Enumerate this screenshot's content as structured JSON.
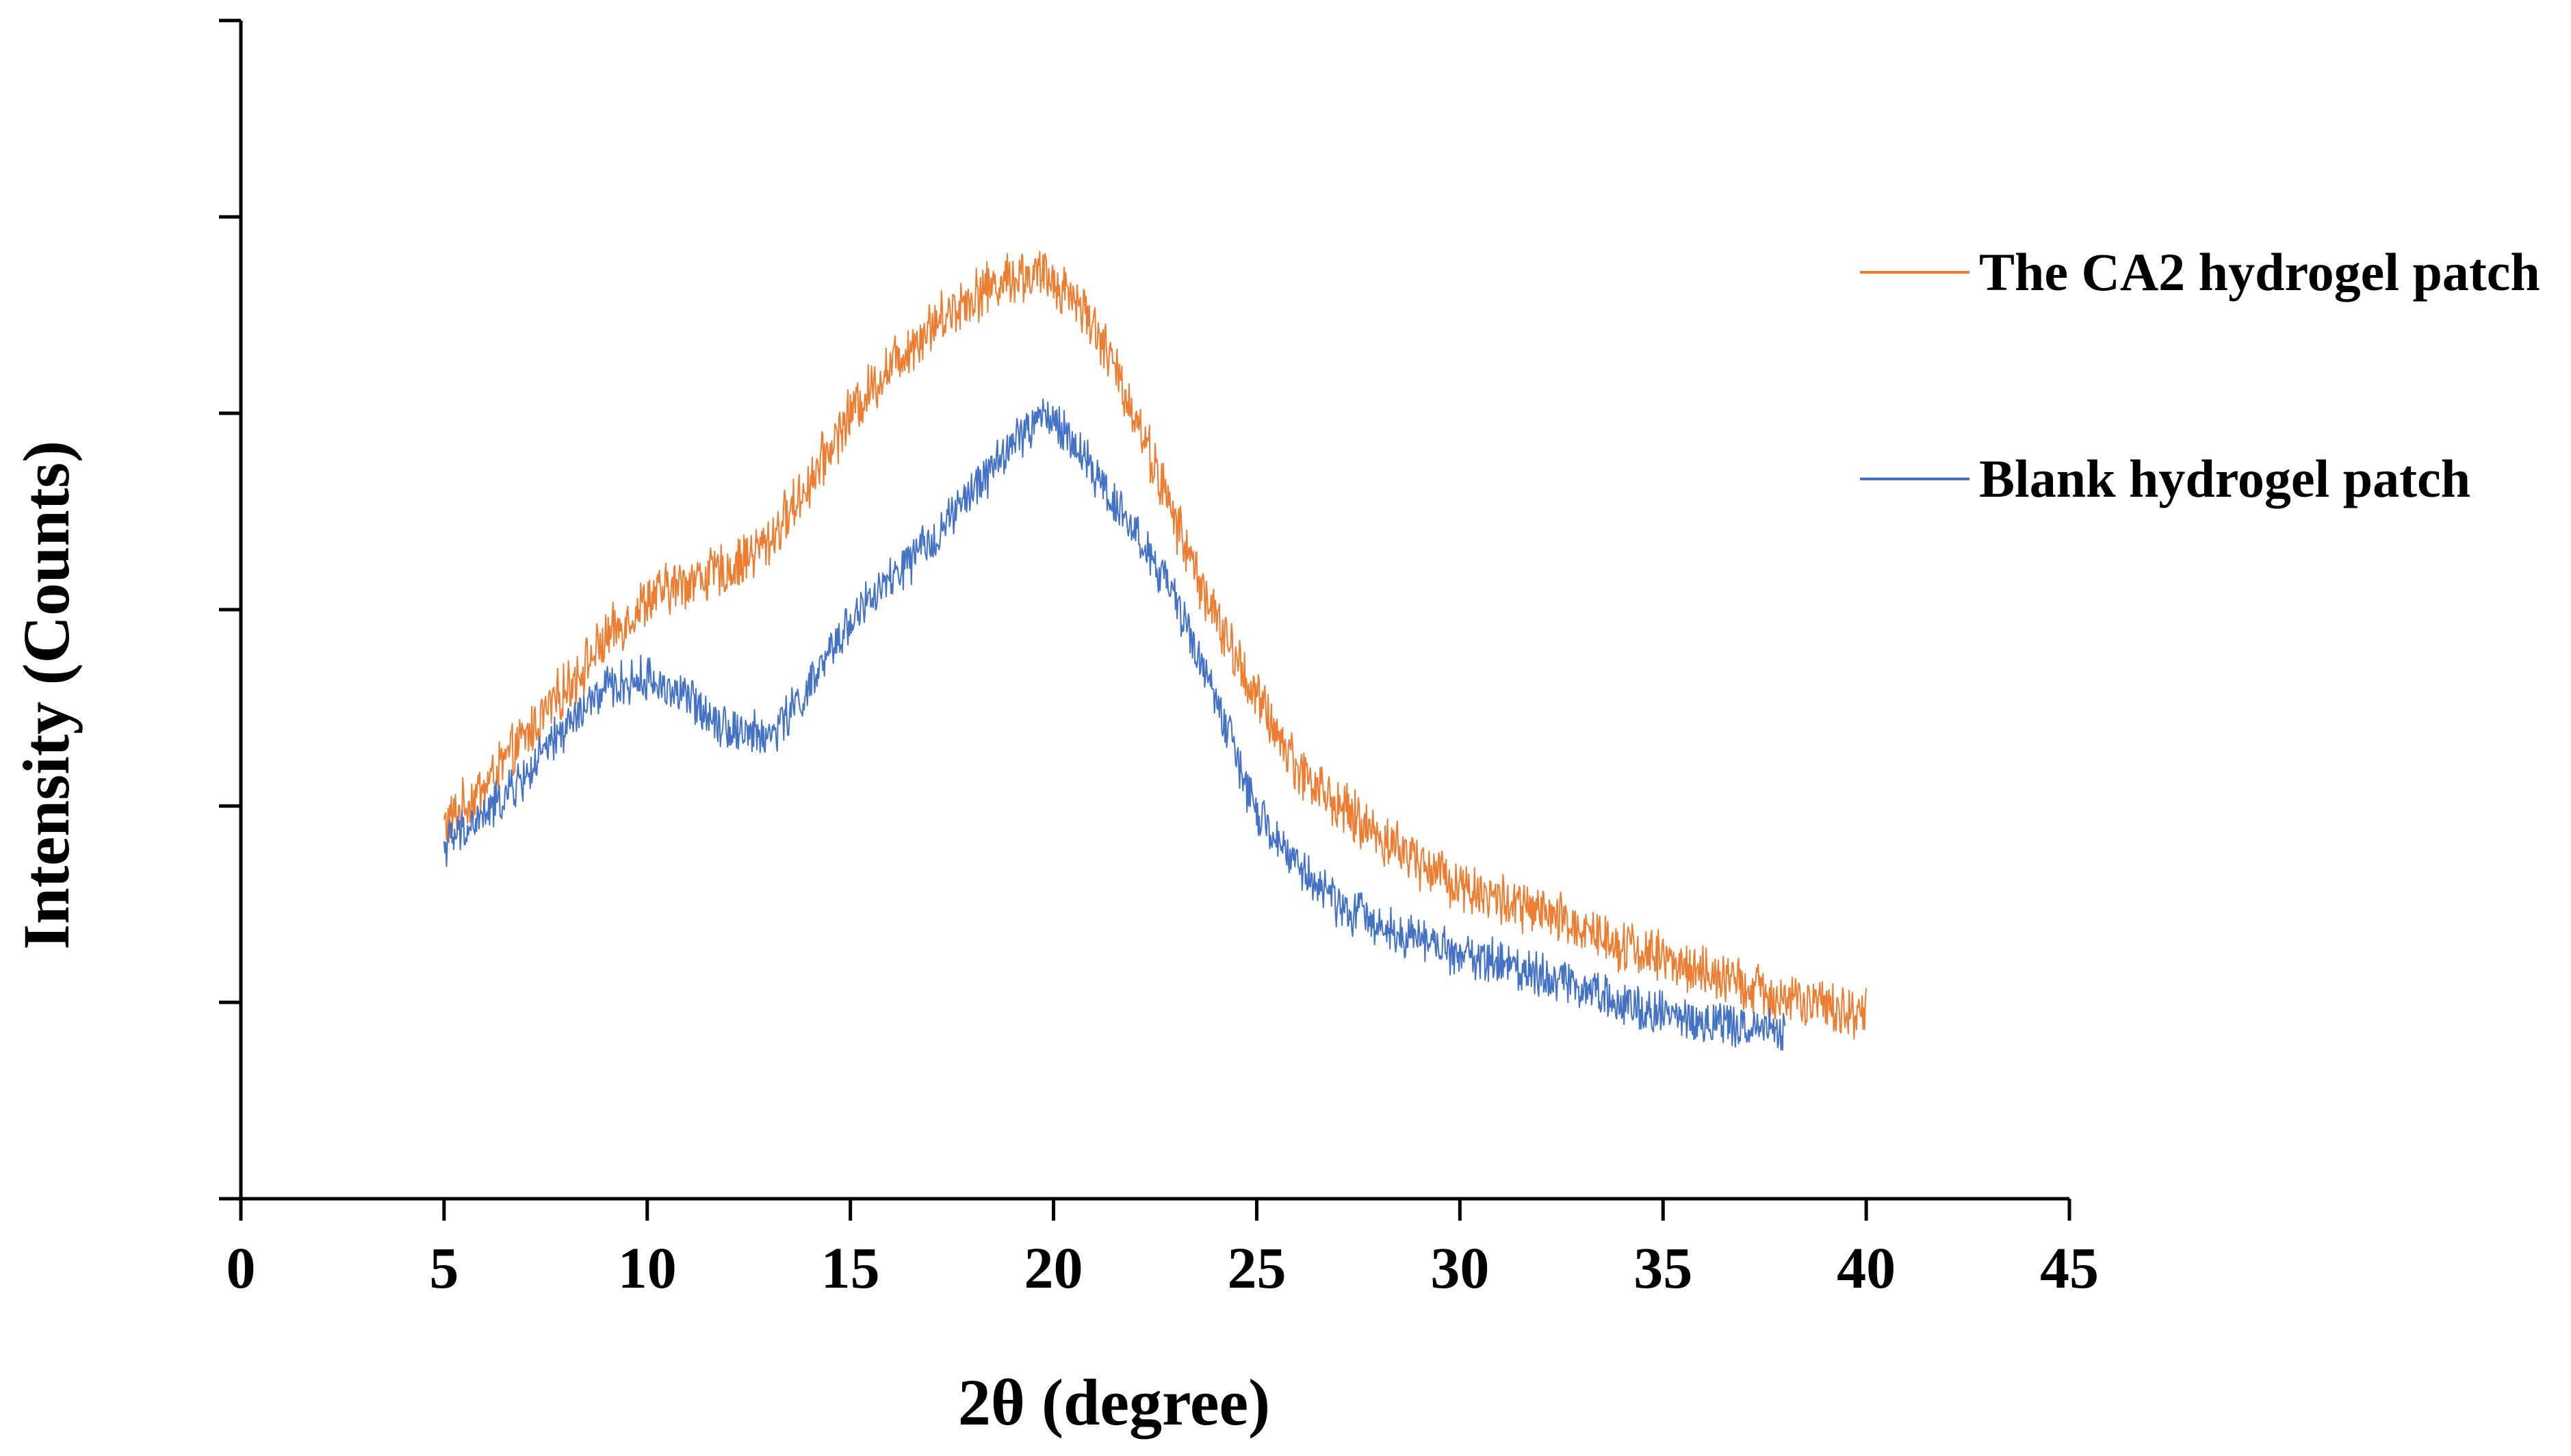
{
  "chart_data": {
    "type": "line",
    "title": "",
    "xlabel": "2θ (degree)",
    "ylabel": "Intensity (Counts)",
    "xlim": [
      0,
      45
    ],
    "ylim": [
      0,
      6
    ],
    "x_ticks": [
      0,
      5,
      10,
      15,
      20,
      25,
      30,
      35,
      40,
      45
    ],
    "x_tick_labels": [
      "0",
      "5",
      "10",
      "15",
      "20",
      "25",
      "30",
      "35",
      "40",
      "45"
    ],
    "y_ticks": [
      0,
      1,
      2,
      3,
      4,
      5,
      6
    ],
    "y_tick_labels_shown": false,
    "grid": false,
    "legend_position": "right",
    "series": [
      {
        "name": "The CA2 hydrogel patch",
        "color": "#ED7D31",
        "noise_amplitude": 0.12,
        "x": [
          5,
          6,
          7,
          8,
          9,
          10,
          11,
          12,
          13,
          14,
          15,
          16,
          17,
          18,
          19,
          19.8,
          20.5,
          21,
          22,
          23,
          24,
          25,
          26,
          27,
          28,
          29,
          30,
          31,
          32,
          33,
          34,
          35,
          36,
          37,
          38,
          39,
          40
        ],
        "values": [
          1.9,
          2.1,
          2.35,
          2.6,
          2.85,
          3.05,
          3.15,
          3.2,
          3.35,
          3.65,
          4.0,
          4.25,
          4.45,
          4.6,
          4.7,
          4.7,
          4.6,
          4.45,
          4.0,
          3.45,
          2.95,
          2.55,
          2.2,
          2.0,
          1.85,
          1.72,
          1.6,
          1.52,
          1.45,
          1.38,
          1.3,
          1.22,
          1.15,
          1.08,
          1.02,
          0.97,
          0.95
        ]
      },
      {
        "name": "Blank hydrogel patch",
        "color": "#4472C4",
        "noise_amplitude": 0.1,
        "x": [
          5,
          6,
          7,
          8,
          9,
          10,
          11,
          12,
          13,
          14,
          15,
          16,
          17,
          18,
          19,
          19.8,
          20.5,
          21,
          22,
          23,
          24,
          25,
          26,
          27,
          28,
          29,
          30,
          31,
          32,
          33,
          34,
          35,
          36,
          37,
          38
        ],
        "values": [
          1.8,
          1.95,
          2.15,
          2.4,
          2.6,
          2.65,
          2.55,
          2.4,
          2.35,
          2.6,
          2.95,
          3.15,
          3.35,
          3.6,
          3.85,
          4.0,
          3.85,
          3.7,
          3.4,
          3.05,
          2.55,
          1.95,
          1.7,
          1.5,
          1.4,
          1.32,
          1.25,
          1.2,
          1.15,
          1.08,
          1.0,
          0.95,
          0.9,
          0.88,
          0.85
        ]
      }
    ]
  }
}
